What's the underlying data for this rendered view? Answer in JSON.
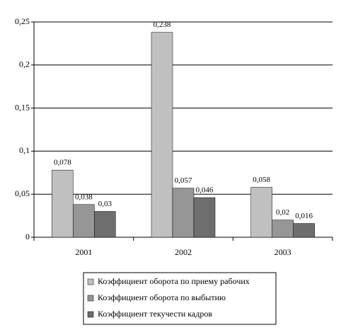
{
  "chart_data": {
    "type": "bar",
    "categories": [
      "2001",
      "2002",
      "2003"
    ],
    "series": [
      {
        "name": "Коэффициент оборота по приему рабочих",
        "color": "#c0c0c0",
        "values": [
          0.078,
          0.238,
          0.058
        ],
        "value_labels": [
          "0,078",
          "0,238",
          "0,058"
        ]
      },
      {
        "name": "Коэффициент оборота по выбытию",
        "color": "#969696",
        "values": [
          0.038,
          0.057,
          0.02
        ],
        "value_labels": [
          "0,038",
          "0,057",
          "0,02"
        ]
      },
      {
        "name": "Коэффициент текучести кадров",
        "color": "#6e6e6e",
        "values": [
          0.03,
          0.046,
          0.016
        ],
        "value_labels": [
          "0,03",
          "0,046",
          "0,016"
        ]
      }
    ],
    "ylim": [
      0,
      0.25
    ],
    "yticks": [
      0,
      {
        "value": 0.05,
        "label": "0,05"
      },
      {
        "value": 0.1,
        "label": "0,1"
      },
      {
        "value": 0.15,
        "label": "0,15"
      },
      {
        "value": 0.2,
        "label": "0,2"
      },
      {
        "value": 0.25,
        "label": "0,25"
      }
    ],
    "grid": true
  }
}
